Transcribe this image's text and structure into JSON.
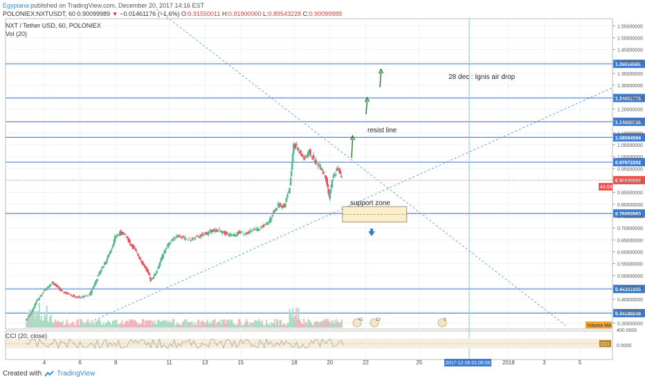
{
  "header": {
    "author": "Egypiana",
    "published": "published on TradingView.com, December 20, 2017 14:16 EST",
    "symbol": "POLONIEX:NXTUSDT, 60",
    "price": "0.90099989",
    "change_arrow": "▼",
    "change": "−0.01461176 (−1.6%)",
    "o_label": "O:",
    "o_val": "0.91550011",
    "h_label": "H:",
    "h_val": "0.91900000",
    "l_label": "L:",
    "l_val": "0.89543228",
    "c_label": "C:",
    "c_val": "0.90099989"
  },
  "footer": {
    "created_with": "Created with",
    "brand": "TradingView"
  },
  "chart_data": {
    "type": "candlestick",
    "title": "NXT / Tether USD, 60, POLONIEX",
    "indicator_label": "Vol (20)",
    "oscillator_label": "CCI (20, close)",
    "volume_ma_label": "Volume MA",
    "cci_badge": "CCI",
    "ylim": [
      0.275,
      1.58
    ],
    "y_ticks": [
      "1.55000000",
      "1.50000000",
      "1.45000000",
      "1.40000000",
      "1.35000000",
      "1.30000000",
      "1.25000000",
      "1.20000000",
      "1.15000000",
      "1.10000000",
      "1.05000000",
      "1.00000000",
      "0.95000000",
      "0.90000000",
      "0.85000000",
      "0.80000000",
      "0.75000000",
      "0.70000000",
      "0.65000000",
      "0.60000000",
      "0.55000000",
      "0.50000000",
      "0.45000000",
      "0.40000000",
      "0.35000000",
      "0.30000000"
    ],
    "horizontal_levels": [
      {
        "value": 1.39018581,
        "label": "1.39018581"
      },
      {
        "value": 1.24651778,
        "label": "1.24651778"
      },
      {
        "value": 1.14659736,
        "label": "1.14659736"
      },
      {
        "value": 1.08094594,
        "label": "1.08094594"
      },
      {
        "value": 0.97672202,
        "label": "0.97672202"
      },
      {
        "value": 0.76092663,
        "label": "0.76092663"
      },
      {
        "value": 0.44351805,
        "label": "0.44351805"
      },
      {
        "value": 0.34188249,
        "label": "0.34188249"
      }
    ],
    "current_price": {
      "value": 0.90099989,
      "label": "0.90099989",
      "countdown": "44:04"
    },
    "x_ticks": [
      {
        "day": 4,
        "label": "4"
      },
      {
        "day": 6,
        "label": "6"
      },
      {
        "day": 8,
        "label": "8"
      },
      {
        "day": 11,
        "label": "11"
      },
      {
        "day": 13,
        "label": "13"
      },
      {
        "day": 15,
        "label": "15"
      },
      {
        "day": 18,
        "label": "18"
      },
      {
        "day": 20,
        "label": "20"
      },
      {
        "day": 22,
        "label": "22"
      },
      {
        "day": 25,
        "label": "25"
      },
      {
        "day": 30,
        "label": "2018"
      },
      {
        "day": 32,
        "label": "3"
      },
      {
        "day": 34,
        "label": "5"
      }
    ],
    "cursor_date_label": "2017-12-28 01:00:00",
    "cci_ticks": [
      "400.0000",
      "0.0000"
    ],
    "annotations": [
      {
        "text": "28 dec : Ignis air drop"
      },
      {
        "text": "resist line"
      },
      {
        "text": "support zone"
      }
    ],
    "support_zone": {
      "top": 0.79,
      "bottom": 0.725,
      "day_start": 20.7,
      "day_end": 24.3
    },
    "event_badges": [
      "41",
      "13",
      "3"
    ],
    "price_path": [
      [
        3.0,
        0.31
      ],
      [
        3.3,
        0.34
      ],
      [
        3.6,
        0.39
      ],
      [
        3.9,
        0.42
      ],
      [
        4.2,
        0.45
      ],
      [
        4.5,
        0.47
      ],
      [
        4.8,
        0.45
      ],
      [
        5.1,
        0.43
      ],
      [
        5.5,
        0.42
      ],
      [
        5.9,
        0.41
      ],
      [
        6.2,
        0.41
      ],
      [
        6.6,
        0.42
      ],
      [
        6.9,
        0.47
      ],
      [
        7.2,
        0.52
      ],
      [
        7.5,
        0.56
      ],
      [
        7.8,
        0.61
      ],
      [
        8.0,
        0.66
      ],
      [
        8.3,
        0.68
      ],
      [
        8.6,
        0.67
      ],
      [
        8.9,
        0.63
      ],
      [
        9.2,
        0.6
      ],
      [
        9.5,
        0.56
      ],
      [
        9.8,
        0.52
      ],
      [
        10.0,
        0.48
      ],
      [
        10.3,
        0.51
      ],
      [
        10.6,
        0.57
      ],
      [
        10.9,
        0.62
      ],
      [
        11.2,
        0.65
      ],
      [
        11.5,
        0.67
      ],
      [
        11.8,
        0.66
      ],
      [
        12.2,
        0.65
      ],
      [
        12.6,
        0.66
      ],
      [
        12.9,
        0.67
      ],
      [
        13.2,
        0.68
      ],
      [
        13.5,
        0.69
      ],
      [
        13.8,
        0.69
      ],
      [
        14.1,
        0.68
      ],
      [
        14.4,
        0.67
      ],
      [
        14.7,
        0.67
      ],
      [
        15.0,
        0.68
      ],
      [
        15.4,
        0.68
      ],
      [
        15.8,
        0.69
      ],
      [
        16.2,
        0.7
      ],
      [
        16.6,
        0.72
      ],
      [
        16.9,
        0.77
      ],
      [
        17.2,
        0.8
      ],
      [
        17.5,
        0.79
      ],
      [
        17.8,
        0.87
      ],
      [
        18.0,
        1.05
      ],
      [
        18.3,
        1.03
      ],
      [
        18.6,
        0.99
      ],
      [
        18.9,
        1.02
      ],
      [
        19.2,
        0.98
      ],
      [
        19.5,
        0.96
      ],
      [
        19.8,
        0.92
      ],
      [
        20.0,
        0.83
      ],
      [
        20.2,
        0.91
      ],
      [
        20.5,
        0.95
      ],
      [
        20.7,
        0.91
      ]
    ]
  }
}
